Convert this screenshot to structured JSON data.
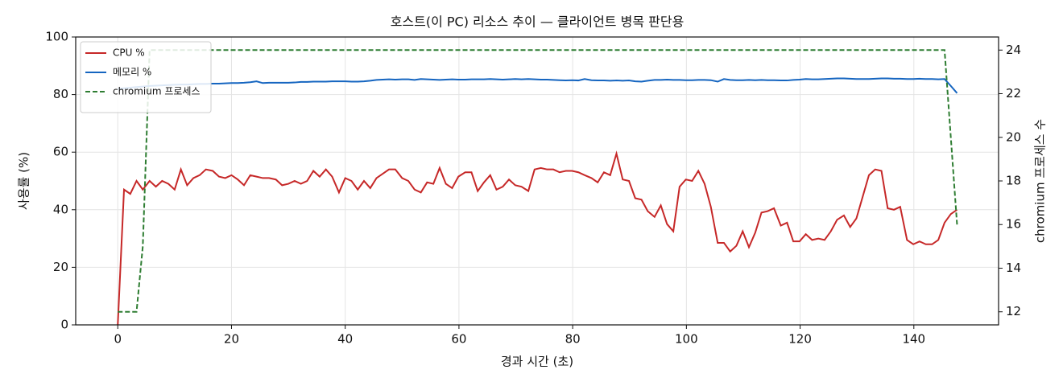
{
  "chart_data": {
    "type": "line",
    "title": "호스트(이 PC) 리소스 추이 — 클라이언트 병목 판단용",
    "x_label": "경과 시간 (초)",
    "y_label": "사용률 (%)",
    "y2_label": "chromium 프로세스 수",
    "x": [
      0,
      1.1,
      2.2,
      3.3,
      4.4,
      5.6,
      6.7,
      7.8,
      8.9,
      10,
      11.1,
      12.2,
      13.3,
      14.4,
      15.5,
      16.7,
      17.8,
      18.9,
      20,
      21.1,
      22.2,
      23.3,
      24.4,
      25.5,
      26.6,
      27.8,
      28.9,
      30,
      31.1,
      32.2,
      33.3,
      34.4,
      35.5,
      36.6,
      37.7,
      38.9,
      40,
      41.1,
      42.2,
      43.3,
      44.4,
      45.5,
      46.6,
      47.7,
      48.8,
      50,
      51.1,
      52.2,
      53.3,
      54.4,
      55.5,
      56.6,
      57.7,
      58.8,
      59.9,
      61.1,
      62.2,
      63.3,
      64.4,
      65.5,
      66.6,
      67.7,
      68.8,
      69.9,
      71,
      72.2,
      73.3,
      74.4,
      75.5,
      76.6,
      77.7,
      78.8,
      79.9,
      81,
      82.1,
      83.3,
      84.4,
      85.5,
      86.6,
      87.7,
      88.8,
      89.9,
      91,
      92.1,
      93.2,
      94.4,
      95.5,
      96.6,
      97.7,
      98.8,
      99.9,
      101,
      102.1,
      103.2,
      104.3,
      105.5,
      106.6,
      107.7,
      108.8,
      109.9,
      111,
      112.1,
      113.2,
      114.3,
      115.4,
      116.6,
      117.7,
      118.8,
      119.9,
      121,
      122.1,
      123.2,
      124.3,
      125.4,
      126.5,
      127.7,
      128.8,
      129.9,
      131,
      132.1,
      133.2,
      134.3,
      135.4,
      136.5,
      137.6,
      138.8,
      139.9,
      141,
      142.1,
      143.2,
      144.3,
      145.4,
      146.5,
      147.6
    ],
    "series": [
      {
        "name": "CPU %",
        "color": "#c62828",
        "linestyle": "solid",
        "axis": "y",
        "values": [
          0,
          47,
          45.5,
          50,
          47,
          50,
          48,
          50,
          49,
          47,
          54,
          48.5,
          51,
          52,
          54,
          53.5,
          51.5,
          51,
          52,
          50.5,
          48.5,
          52,
          51.5,
          51,
          51,
          50.5,
          48.5,
          49,
          50,
          49,
          50,
          53.5,
          51.5,
          54,
          51.5,
          46,
          51,
          50,
          47,
          50,
          47.5,
          51,
          52.5,
          54,
          54,
          51,
          50,
          47,
          46,
          49.5,
          49,
          54.5,
          49,
          47.5,
          51.5,
          53,
          53,
          46.5,
          49.5,
          52,
          47,
          48,
          50.5,
          48.5,
          48,
          46.5,
          54,
          54.5,
          54,
          54,
          53,
          53.5,
          53.5,
          53,
          52,
          51,
          49.5,
          53,
          52,
          59.5,
          50.5,
          50,
          44,
          43.5,
          39.5,
          37.5,
          41.5,
          35,
          32.5,
          48,
          50.5,
          50,
          53.5,
          49,
          41,
          28.5,
          28.5,
          25.5,
          27.5,
          32.5,
          27,
          32,
          39,
          39.5,
          40.5,
          34.5,
          35.5,
          29,
          29,
          31.5,
          29.5,
          30,
          29.5,
          32.5,
          36.5,
          38,
          34,
          37,
          44.5,
          52,
          54,
          53.5,
          40.5,
          40,
          41,
          29.5,
          28,
          29,
          28,
          28,
          29.5,
          35.5,
          38.5,
          40
        ]
      },
      {
        "name": "메모리 %",
        "color": "#1565c0",
        "linestyle": "solid",
        "axis": "y",
        "values": [
          82,
          82.2,
          82.4,
          82.6,
          82.8,
          83,
          83.1,
          83.2,
          83.3,
          83.4,
          83.5,
          83.5,
          83.6,
          83.7,
          83.7,
          83.8,
          83.8,
          83.9,
          84,
          84,
          84.1,
          84.3,
          84.6,
          84,
          84.1,
          84.1,
          84.1,
          84.1,
          84.2,
          84.4,
          84.4,
          84.5,
          84.5,
          84.5,
          84.6,
          84.6,
          84.6,
          84.5,
          84.5,
          84.6,
          84.8,
          85.1,
          85.2,
          85.3,
          85.2,
          85.3,
          85.3,
          85.1,
          85.4,
          85.3,
          85.2,
          85.1,
          85.2,
          85.3,
          85.2,
          85.2,
          85.3,
          85.3,
          85.3,
          85.4,
          85.3,
          85.2,
          85.3,
          85.4,
          85.3,
          85.4,
          85.3,
          85.2,
          85.2,
          85.1,
          85,
          84.9,
          85,
          84.9,
          85.4,
          85,
          84.9,
          84.9,
          84.8,
          84.9,
          84.8,
          84.9,
          84.6,
          84.5,
          84.8,
          85.1,
          85.1,
          85.2,
          85.1,
          85.1,
          85,
          85,
          85.1,
          85.1,
          85,
          84.5,
          85.4,
          85.1,
          85,
          85,
          85.1,
          85,
          85.1,
          85,
          85,
          84.9,
          84.9,
          85.1,
          85.2,
          85.4,
          85.3,
          85.3,
          85.4,
          85.5,
          85.6,
          85.6,
          85.5,
          85.4,
          85.4,
          85.4,
          85.5,
          85.6,
          85.6,
          85.5,
          85.5,
          85.4,
          85.4,
          85.5,
          85.4,
          85.4,
          85.3,
          85.4,
          83,
          80.5
        ]
      },
      {
        "name": "chromium 프로세스",
        "color": "#2e7d32",
        "linestyle": "dashed",
        "axis": "y2",
        "values": [
          12,
          12,
          12,
          12,
          15,
          24,
          24,
          24,
          24,
          24,
          24,
          24,
          24,
          24,
          24,
          24,
          24,
          24,
          24,
          24,
          24,
          24,
          24,
          24,
          24,
          24,
          24,
          24,
          24,
          24,
          24,
          24,
          24,
          24,
          24,
          24,
          24,
          24,
          24,
          24,
          24,
          24,
          24,
          24,
          24,
          24,
          24,
          24,
          24,
          24,
          24,
          24,
          24,
          24,
          24,
          24,
          24,
          24,
          24,
          24,
          24,
          24,
          24,
          24,
          24,
          24,
          24,
          24,
          24,
          24,
          24,
          24,
          24,
          24,
          24,
          24,
          24,
          24,
          24,
          24,
          24,
          24,
          24,
          24,
          24,
          24,
          24,
          24,
          24,
          24,
          24,
          24,
          24,
          24,
          24,
          24,
          24,
          24,
          24,
          24,
          24,
          24,
          24,
          24,
          24,
          24,
          24,
          24,
          24,
          24,
          24,
          24,
          24,
          24,
          24,
          24,
          24,
          24,
          24,
          24,
          24,
          24,
          24,
          24,
          24,
          24,
          24,
          24,
          24,
          24,
          24,
          24,
          20,
          16
        ]
      }
    ],
    "xlim": [
      -7.4,
      154.9
    ],
    "xticks": [
      0,
      20,
      40,
      60,
      80,
      100,
      120,
      140
    ],
    "ylim": [
      0,
      100
    ],
    "yticks": [
      0,
      20,
      40,
      60,
      80,
      100
    ],
    "y2lim": [
      11.4,
      24.6
    ],
    "y2ticks": [
      12,
      14,
      16,
      18,
      20,
      22,
      24
    ],
    "grid": true,
    "legend": "upper left"
  }
}
